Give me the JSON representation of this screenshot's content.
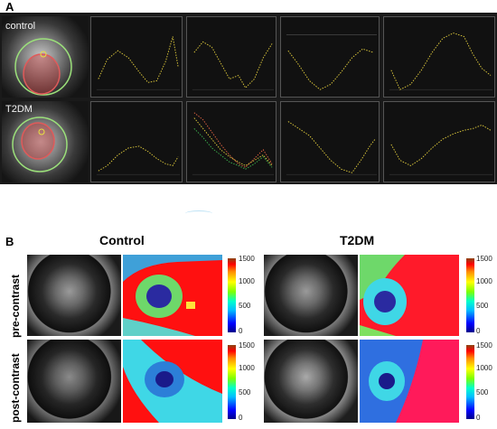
{
  "panel_a": {
    "letter": "A",
    "rows": [
      {
        "label": "control"
      },
      {
        "label": "T2DM"
      }
    ]
  },
  "panel_b": {
    "letter": "B",
    "groups": [
      {
        "title": "Control"
      },
      {
        "title": "T2DM"
      }
    ],
    "row_labels": [
      "pre-contrast",
      "post-contrast"
    ],
    "colorbar_ticks": [
      "1500",
      "1000",
      "500",
      "0"
    ]
  },
  "colors": {
    "curve": "#d8c43a",
    "ring_outer": "#9be07a",
    "ring_inner": "#e05a5a",
    "map_red": "#ff1010",
    "map_cyan": "#3fd7e6"
  }
}
